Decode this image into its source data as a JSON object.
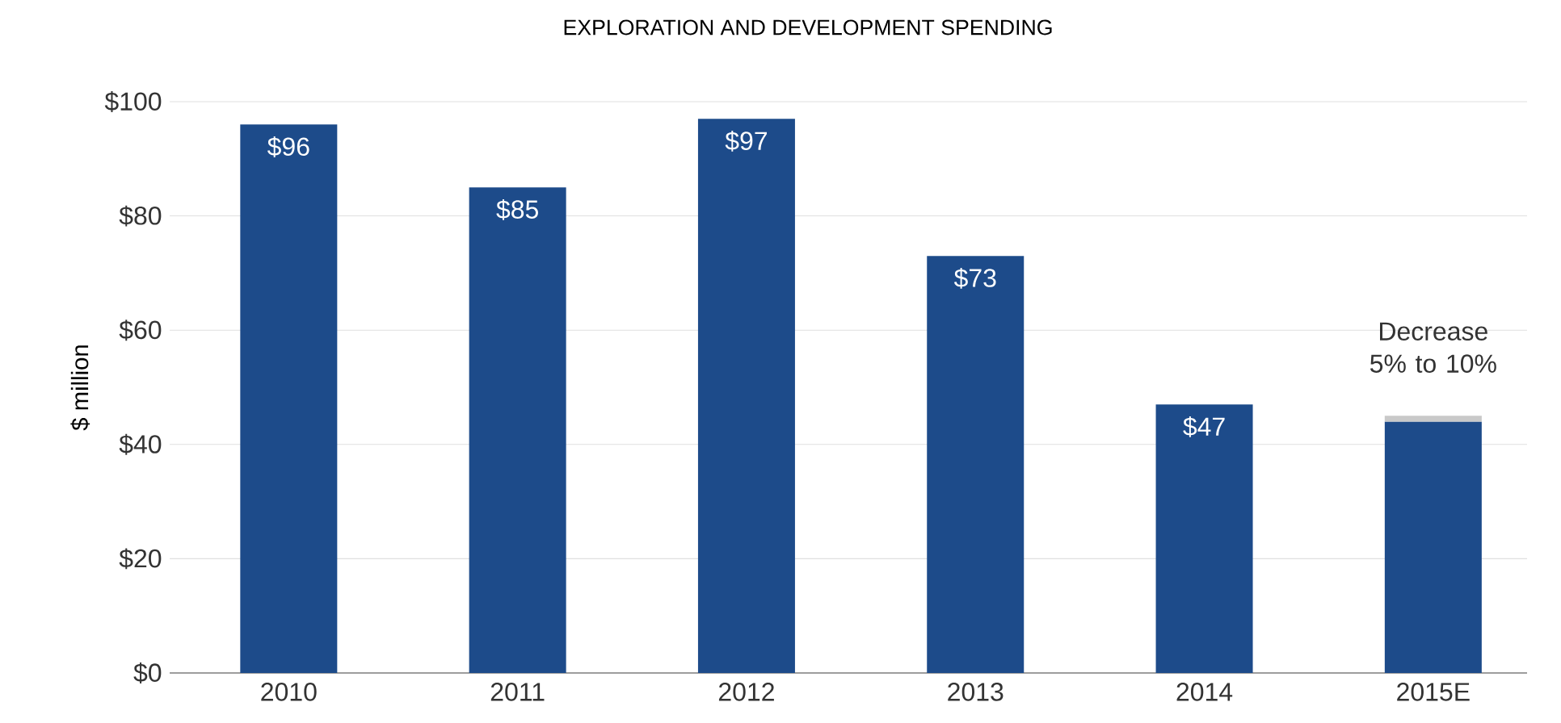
{
  "chart_data": {
    "type": "bar",
    "title": "EXPLORATION AND DEVELOPMENT SPENDING",
    "ylabel": "$ million",
    "categories": [
      "2010",
      "2011",
      "2012",
      "2013",
      "2014",
      "2015E"
    ],
    "stacked": true,
    "series": [
      {
        "color": "#1d4b8a",
        "values": [
          96,
          85,
          97,
          73,
          47,
          44
        ],
        "value_labels": [
          "$96",
          "$85",
          "$97",
          "$73",
          "$47",
          null
        ]
      },
      {
        "color": "#c9c9c9",
        "values": [
          null,
          null,
          null,
          null,
          null,
          1
        ]
      }
    ],
    "ylim": [
      0,
      100
    ],
    "yticks": [
      {
        "value": 0,
        "label": "$0"
      },
      {
        "value": 20,
        "label": "$20"
      },
      {
        "value": 40,
        "label": "$40"
      },
      {
        "value": 60,
        "label": "$60"
      },
      {
        "value": 80,
        "label": "$80"
      },
      {
        "value": 100,
        "label": "$100"
      }
    ],
    "grid": "y",
    "annotations": [
      "Decrease 5% to 10%"
    ]
  }
}
